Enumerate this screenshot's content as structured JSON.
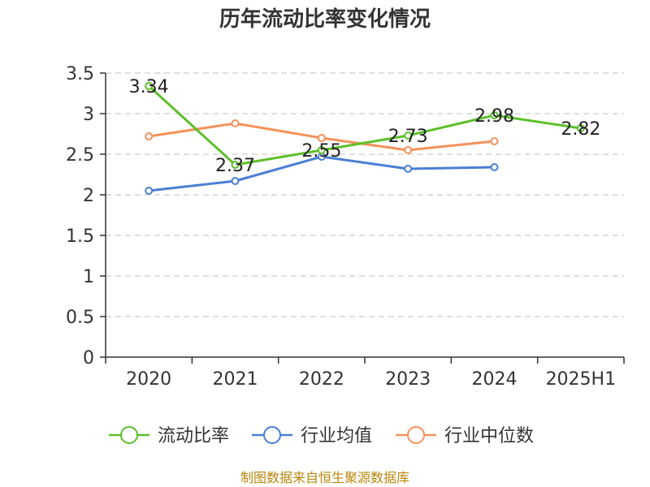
{
  "colors": {
    "current_ratio": "#5cbf2a",
    "industry_mean": "#4a7fd4",
    "industry_median": "#f4915a",
    "axis": "#333333",
    "grid": "#cccccc",
    "source_text": "#b8860b"
  },
  "chart_data": {
    "type": "line",
    "title": "历年流动比率变化情况",
    "categories": [
      "2020",
      "2021",
      "2022",
      "2023",
      "2024",
      "2025H1"
    ],
    "ylim": [
      0,
      3.5
    ],
    "yticks": [
      "0",
      "0.5",
      "1",
      "1.5",
      "2",
      "2.5",
      "3",
      "3.5"
    ],
    "grid": "horizontal-dashed",
    "legend_position": "bottom",
    "series": [
      {
        "name": "流动比率",
        "color_key": "current_ratio",
        "values": [
          3.34,
          2.37,
          2.55,
          2.73,
          2.98,
          2.82
        ],
        "labels": [
          "3.34",
          "2.37",
          "2.55",
          "2.73",
          "2.98",
          "2.82"
        ]
      },
      {
        "name": "行业均值",
        "color_key": "industry_mean",
        "values": [
          2.05,
          2.17,
          2.47,
          2.32,
          2.34,
          null
        ]
      },
      {
        "name": "行业中位数",
        "color_key": "industry_median",
        "values": [
          2.72,
          2.88,
          2.7,
          2.55,
          2.66,
          null
        ]
      }
    ]
  },
  "source_text": "制图数据来自恒生聚源数据库"
}
